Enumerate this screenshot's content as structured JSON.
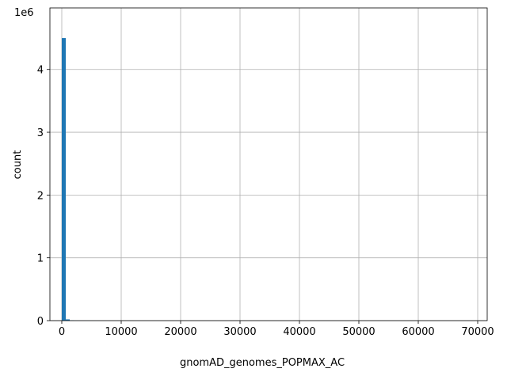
{
  "chart_data": {
    "type": "histogram",
    "x_label": "gnomAD_genomes_POPMAX_AC",
    "y_label": "count",
    "y_offset_label": "1e6",
    "color": "#1f77b4",
    "grid": true,
    "bins": [
      0,
      670,
      1340,
      2010,
      2680,
      3350,
      4020,
      4690,
      5360,
      6030,
      6700,
      7370,
      8040,
      8710,
      9380,
      10050,
      10720,
      11390,
      12060,
      12730,
      13400,
      14070,
      14740,
      15410,
      16080,
      16750,
      17420,
      18090,
      18760,
      19430,
      20100,
      20770,
      21440,
      22110,
      22780,
      23450,
      24120,
      24790,
      25460,
      26130,
      26800,
      27470,
      28140,
      28810,
      29480,
      30150,
      30820,
      31490,
      32160,
      32830,
      33500,
      34170,
      34840,
      35510,
      36180,
      36850,
      37520,
      38190,
      38860,
      39530,
      40200,
      40870,
      41540,
      42210,
      42880,
      43550,
      44220,
      44890,
      45560,
      46230,
      46900,
      47570,
      48240,
      48910,
      49580,
      50250,
      50920,
      51590,
      52260,
      52930,
      53600,
      54270,
      54940,
      55610,
      56280,
      56950,
      57620,
      58290,
      58960,
      59630,
      60300,
      60970,
      61640,
      62310,
      62980,
      63650,
      64320,
      64990,
      65660,
      66330,
      67000
    ],
    "values": [
      4500000,
      20000,
      4000,
      1500,
      800,
      500,
      300,
      200,
      150,
      100,
      90,
      80,
      70,
      60,
      50,
      45,
      40,
      35,
      30,
      25,
      20,
      20,
      18,
      16,
      14,
      12,
      10,
      10,
      9,
      8,
      7,
      7,
      6,
      6,
      5,
      5,
      4,
      4,
      4,
      3,
      3,
      3,
      3,
      2,
      2,
      2,
      2,
      2,
      2,
      2,
      1,
      1,
      1,
      1,
      1,
      1,
      1,
      1,
      1,
      1,
      1,
      1,
      1,
      1,
      1,
      1,
      1,
      1,
      1,
      1,
      1,
      1,
      1,
      1,
      1,
      1,
      1,
      1,
      1,
      1,
      1,
      1,
      1,
      1,
      1,
      1,
      1,
      1,
      1,
      1,
      1,
      1,
      1,
      1,
      1,
      1,
      1,
      1,
      1,
      1
    ],
    "xlim": [
      -2000,
      71600
    ],
    "ylim": [
      0,
      4980000
    ],
    "xticks": [
      0,
      10000,
      20000,
      30000,
      40000,
      50000,
      60000,
      70000
    ],
    "yticks": [
      0,
      {
        "value": 1000000,
        "label": "1"
      },
      {
        "value": 2000000,
        "label": "2"
      },
      {
        "value": 3000000,
        "label": "3"
      },
      {
        "value": 4000000,
        "label": "4"
      }
    ]
  }
}
